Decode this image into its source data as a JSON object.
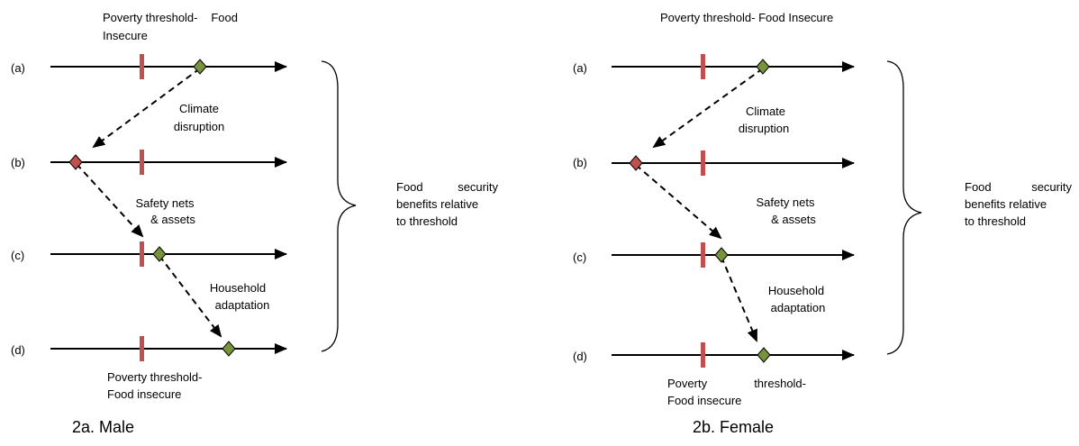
{
  "panels": [
    {
      "caption": "2a. Male",
      "threshold_label_top": [
        "Poverty threshold-",
        "Food",
        "Insecure"
      ],
      "threshold_label_bottom": [
        "Poverty threshold-",
        "Food insecure"
      ],
      "row_labels": [
        "(a)",
        "(b)",
        "(c)",
        "(d)"
      ],
      "transitions": [
        {
          "line1": "Climate",
          "line2": "disruption"
        },
        {
          "line1": "Safety nets",
          "line2": "& assets"
        },
        {
          "line1": "Household",
          "line2": "adaptation"
        }
      ],
      "brace_label": [
        "Food",
        "security",
        "benefits relative",
        "to threshold"
      ],
      "marker_colors": [
        "#77933c",
        "#c0504d",
        "#77933c",
        "#77933c"
      ]
    },
    {
      "caption": "2b. Female",
      "threshold_label_top": [
        "Poverty threshold- Food Insecure"
      ],
      "threshold_label_bottom": [
        "Poverty",
        "threshold-",
        "Food insecure"
      ],
      "row_labels": [
        "(a)",
        "(b)",
        "(c)",
        "(d)"
      ],
      "transitions": [
        {
          "line1": "Climate",
          "line2": "disruption"
        },
        {
          "line1": "Safety nets",
          "line2": "& assets"
        },
        {
          "line1": "Household",
          "line2": "adaptation"
        }
      ],
      "brace_label": [
        "Food",
        "security",
        "benefits relative",
        "to threshold"
      ],
      "marker_colors": [
        "#77933c",
        "#c0504d",
        "#77933c",
        "#77933c"
      ]
    }
  ],
  "colors": {
    "threshold": "#c0504d",
    "line": "#000000"
  }
}
